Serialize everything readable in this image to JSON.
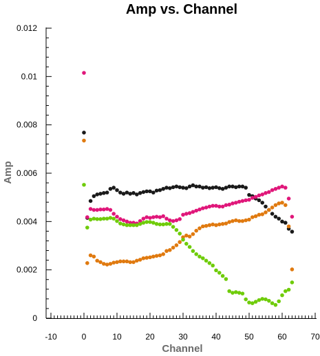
{
  "chart_data": {
    "type": "scatter",
    "title": "Amp vs. Channel",
    "xlabel": "Channel",
    "ylabel": "Amp",
    "xlim": [
      -10,
      70
    ],
    "ylim": [
      0,
      0.012
    ],
    "x_ticks": [
      -10,
      0,
      10,
      20,
      30,
      40,
      50,
      60,
      70
    ],
    "y_ticks": [
      0,
      0.002,
      0.004,
      0.006,
      0.008,
      0.01,
      0.012
    ],
    "x_tick_labels": [
      "-10",
      "0",
      "10",
      "20",
      "30",
      "40",
      "50",
      "60",
      "70"
    ],
    "y_tick_labels": [
      "0",
      "0.002",
      "0.004",
      "0.006",
      "0.008",
      "0.01",
      "0.012"
    ],
    "grid": false,
    "series": [
      {
        "color": "#1a1a1a",
        "x": [
          0,
          1,
          2,
          3,
          4,
          5,
          6,
          7,
          8,
          9,
          10,
          11,
          12,
          13,
          14,
          15,
          16,
          17,
          18,
          19,
          20,
          21,
          22,
          23,
          24,
          25,
          26,
          27,
          28,
          29,
          30,
          31,
          32,
          33,
          34,
          35,
          36,
          37,
          38,
          39,
          40,
          41,
          42,
          43,
          44,
          45,
          46,
          47,
          48,
          49,
          50,
          51,
          52,
          53,
          54,
          55,
          56,
          57,
          58,
          59,
          60,
          61,
          62,
          63
        ],
        "y": [
          0.00768,
          0.00415,
          0.00485,
          0.00505,
          0.00512,
          0.00515,
          0.00518,
          0.0052,
          0.00535,
          0.0054,
          0.0053,
          0.0052,
          0.00515,
          0.0052,
          0.00515,
          0.00518,
          0.00512,
          0.00518,
          0.00522,
          0.00525,
          0.00525,
          0.0052,
          0.00528,
          0.0053,
          0.00535,
          0.0054,
          0.00538,
          0.00542,
          0.00545,
          0.00542,
          0.0054,
          0.00538,
          0.00545,
          0.0055,
          0.00545,
          0.00545,
          0.0054,
          0.00542,
          0.00538,
          0.0054,
          0.00542,
          0.00538,
          0.00535,
          0.0054,
          0.00545,
          0.00545,
          0.00542,
          0.00545,
          0.00545,
          0.0054,
          0.0051,
          0.00505,
          0.00495,
          0.00488,
          0.00478,
          0.00462,
          0.00448,
          0.00432,
          0.0042,
          0.00412,
          0.004,
          0.00395,
          0.0037,
          0.00358
        ]
      },
      {
        "color": "#e0177a",
        "x": [
          0,
          1,
          2,
          3,
          4,
          5,
          6,
          7,
          8,
          9,
          10,
          11,
          12,
          13,
          14,
          15,
          16,
          17,
          18,
          19,
          20,
          21,
          22,
          23,
          24,
          25,
          26,
          27,
          28,
          29,
          30,
          31,
          32,
          33,
          34,
          35,
          36,
          37,
          38,
          39,
          40,
          41,
          42,
          43,
          44,
          45,
          46,
          47,
          48,
          49,
          50,
          51,
          52,
          53,
          54,
          55,
          56,
          57,
          58,
          59,
          60,
          61,
          62,
          63
        ],
        "y": [
          0.01015,
          0.00418,
          0.00452,
          0.00448,
          0.00448,
          0.0045,
          0.0045,
          0.00452,
          0.00448,
          0.00432,
          0.0042,
          0.0041,
          0.00405,
          0.004,
          0.00395,
          0.00395,
          0.00392,
          0.00402,
          0.00412,
          0.00418,
          0.00415,
          0.00418,
          0.0042,
          0.00418,
          0.00422,
          0.00412,
          0.00405,
          0.00402,
          0.00405,
          0.0041,
          0.00428,
          0.00432,
          0.00435,
          0.0044,
          0.00445,
          0.0045,
          0.00455,
          0.00458,
          0.00462,
          0.00465,
          0.00465,
          0.00462,
          0.00462,
          0.00468,
          0.0047,
          0.00475,
          0.00478,
          0.00482,
          0.00485,
          0.00488,
          0.0049,
          0.00498,
          0.00502,
          0.00508,
          0.00512,
          0.00518,
          0.00522,
          0.0053,
          0.00535,
          0.0054,
          0.00545,
          0.0054,
          0.00495,
          0.0042
        ]
      },
      {
        "color": "#e07a10",
        "x": [
          0,
          1,
          2,
          3,
          4,
          5,
          6,
          7,
          8,
          9,
          10,
          11,
          12,
          13,
          14,
          15,
          16,
          17,
          18,
          19,
          20,
          21,
          22,
          23,
          24,
          25,
          26,
          27,
          28,
          29,
          30,
          31,
          32,
          33,
          34,
          35,
          36,
          37,
          38,
          39,
          40,
          41,
          42,
          43,
          44,
          45,
          46,
          47,
          48,
          49,
          50,
          51,
          52,
          53,
          54,
          55,
          56,
          57,
          58,
          59,
          60,
          61,
          62,
          63
        ],
        "y": [
          0.00735,
          0.00228,
          0.0026,
          0.00255,
          0.00238,
          0.00232,
          0.00225,
          0.00222,
          0.00225,
          0.0023,
          0.00232,
          0.00235,
          0.00235,
          0.00235,
          0.00232,
          0.00232,
          0.00238,
          0.00242,
          0.00248,
          0.0025,
          0.00252,
          0.00255,
          0.00258,
          0.0026,
          0.00265,
          0.00278,
          0.00282,
          0.00292,
          0.00302,
          0.00315,
          0.00335,
          0.00342,
          0.00338,
          0.00348,
          0.00362,
          0.00372,
          0.0038,
          0.00382,
          0.00385,
          0.00388,
          0.00385,
          0.00388,
          0.0039,
          0.00392,
          0.00398,
          0.00402,
          0.00405,
          0.00402,
          0.00402,
          0.00405,
          0.00408,
          0.00418,
          0.00422,
          0.00428,
          0.0043,
          0.00438,
          0.00448,
          0.00458,
          0.00468,
          0.00475,
          0.00478,
          0.00468,
          0.0038,
          0.00202
        ]
      },
      {
        "color": "#6fcc0a",
        "x": [
          0,
          1,
          2,
          3,
          4,
          5,
          6,
          7,
          8,
          9,
          10,
          11,
          12,
          13,
          14,
          15,
          16,
          17,
          18,
          19,
          20,
          21,
          22,
          23,
          24,
          25,
          26,
          27,
          28,
          29,
          30,
          31,
          32,
          33,
          34,
          35,
          36,
          37,
          38,
          39,
          40,
          41,
          42,
          43,
          44,
          45,
          46,
          47,
          48,
          49,
          50,
          51,
          52,
          53,
          54,
          55,
          56,
          57,
          58,
          59,
          60,
          61,
          62,
          63
        ],
        "y": [
          0.00552,
          0.00375,
          0.00408,
          0.00412,
          0.0041,
          0.0041,
          0.00412,
          0.00412,
          0.00415,
          0.00412,
          0.00402,
          0.00392,
          0.00388,
          0.00385,
          0.00385,
          0.00385,
          0.00385,
          0.0039,
          0.00395,
          0.00398,
          0.00398,
          0.00395,
          0.0039,
          0.00388,
          0.00388,
          0.0039,
          0.0039,
          0.00378,
          0.00365,
          0.0035,
          0.00325,
          0.00308,
          0.00295,
          0.00278,
          0.00265,
          0.00255,
          0.00248,
          0.00238,
          0.00228,
          0.00218,
          0.00198,
          0.00188,
          0.00175,
          0.00162,
          0.00112,
          0.00105,
          0.00108,
          0.00105,
          0.00102,
          0.00078,
          0.00065,
          0.00062,
          0.00068,
          0.00075,
          0.0008,
          0.00078,
          0.00072,
          0.00062,
          0.00055,
          0.0007,
          0.00095,
          0.00112,
          0.00118,
          0.00148
        ]
      }
    ]
  }
}
